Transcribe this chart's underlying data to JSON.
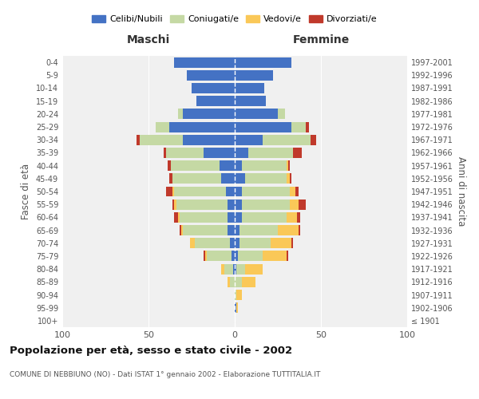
{
  "age_groups": [
    "100+",
    "95-99",
    "90-94",
    "85-89",
    "80-84",
    "75-79",
    "70-74",
    "65-69",
    "60-64",
    "55-59",
    "50-54",
    "45-49",
    "40-44",
    "35-39",
    "30-34",
    "25-29",
    "20-24",
    "15-19",
    "10-14",
    "5-9",
    "0-4"
  ],
  "birth_years": [
    "≤ 1901",
    "1902-1906",
    "1907-1911",
    "1912-1916",
    "1917-1921",
    "1922-1926",
    "1927-1931",
    "1932-1936",
    "1937-1941",
    "1942-1946",
    "1947-1951",
    "1952-1956",
    "1957-1961",
    "1962-1966",
    "1967-1971",
    "1972-1976",
    "1977-1981",
    "1982-1986",
    "1987-1991",
    "1992-1996",
    "1997-2001"
  ],
  "male": {
    "celibi": [
      0,
      0,
      0,
      0,
      1,
      2,
      3,
      4,
      4,
      4,
      5,
      8,
      9,
      18,
      30,
      38,
      30,
      22,
      25,
      28,
      35
    ],
    "coniugati": [
      0,
      0,
      0,
      3,
      5,
      14,
      20,
      26,
      28,
      30,
      30,
      28,
      28,
      22,
      25,
      8,
      3,
      0,
      0,
      0,
      0
    ],
    "vedovi": [
      0,
      0,
      0,
      1,
      2,
      1,
      3,
      1,
      1,
      1,
      1,
      0,
      0,
      0,
      0,
      0,
      0,
      0,
      0,
      0,
      0
    ],
    "divorziati": [
      0,
      0,
      0,
      0,
      0,
      1,
      0,
      1,
      2,
      1,
      4,
      2,
      2,
      1,
      2,
      0,
      0,
      0,
      0,
      0,
      0
    ]
  },
  "female": {
    "nubili": [
      0,
      1,
      0,
      0,
      1,
      2,
      3,
      3,
      4,
      4,
      4,
      6,
      4,
      8,
      16,
      33,
      25,
      18,
      17,
      22,
      33
    ],
    "coniugate": [
      0,
      0,
      1,
      4,
      5,
      14,
      18,
      22,
      26,
      28,
      28,
      24,
      26,
      26,
      28,
      8,
      4,
      0,
      0,
      0,
      0
    ],
    "vedove": [
      0,
      1,
      3,
      8,
      10,
      14,
      12,
      12,
      6,
      5,
      3,
      2,
      1,
      0,
      0,
      0,
      0,
      0,
      0,
      0,
      0
    ],
    "divorziate": [
      0,
      0,
      0,
      0,
      0,
      1,
      1,
      1,
      2,
      4,
      2,
      1,
      1,
      5,
      3,
      2,
      0,
      0,
      0,
      0,
      0
    ]
  },
  "colors": {
    "celibi": "#4472C4",
    "coniugati": "#C5D9A4",
    "vedovi": "#FAC858",
    "divorziati": "#C0392B"
  },
  "xlim": 100,
  "title": "Popolazione per età, sesso e stato civile - 2002",
  "subtitle": "COMUNE DI NEBBIUNO (NO) - Dati ISTAT 1° gennaio 2002 - Elaborazione TUTTITALIA.IT",
  "xlabel_left": "Maschi",
  "xlabel_right": "Femmine",
  "ylabel_left": "Fasce di età",
  "ylabel_right": "Anni di nascita",
  "legend_labels": [
    "Celibi/Nubili",
    "Coniugati/e",
    "Vedovi/e",
    "Divorziati/e"
  ],
  "bg_color": "#f0f0f0"
}
